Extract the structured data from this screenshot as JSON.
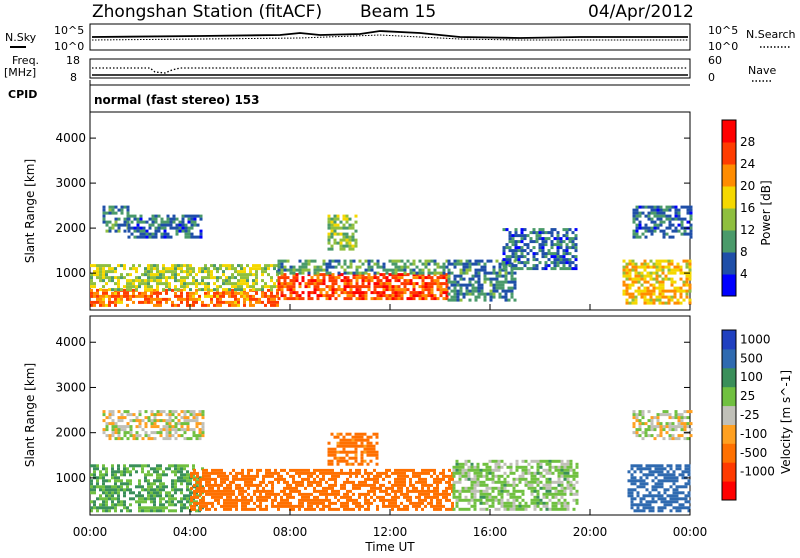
{
  "header": {
    "station": "Zhongshan Station (fitACF)",
    "beam": "Beam 15",
    "date": "04/Apr/2012"
  },
  "top_panels": {
    "nsky_label": "N.Sky",
    "nsearch_label": "N.Search",
    "nsky_ticks": [
      "10^5",
      "10^0"
    ],
    "nsearch_ticks": [
      "10^5",
      "10^0"
    ],
    "freq_label": "Freq.",
    "freq_unit": "[MHz]",
    "freq_ticks": [
      "18",
      "8"
    ],
    "nave_label": "Nave",
    "nave_ticks": [
      "60",
      "0"
    ],
    "cpid_label": "CPID",
    "cpid_text": "normal (fast stereo) 153"
  },
  "colors": {
    "power_scale": [
      "#0000ff",
      "#1f4fa8",
      "#4a9a6a",
      "#8fbf3f",
      "#f5d800",
      "#ff8c00",
      "#ff3c00",
      "#ff0000"
    ],
    "velocity_scale": [
      "#2040c0",
      "#2f6ab0",
      "#3a8f5a",
      "#70c040",
      "#c0c0b8",
      "#ffa020",
      "#ff7000",
      "#ff3a00",
      "#ff0000"
    ]
  },
  "chart_data": [
    {
      "type": "heatmap",
      "ylabel": "Slant Range [km]",
      "xlabel": "Time UT",
      "x_ticks": [
        "00:00",
        "04:00",
        "08:00",
        "12:00",
        "16:00",
        "20:00",
        "00:00"
      ],
      "xlim_hours": [
        0,
        24
      ],
      "ylim_km": [
        180,
        4580
      ],
      "y_ticks": [
        1000,
        2000,
        3000,
        4000
      ],
      "colorbar_label": "Power [dB]",
      "colorbar_ticks": [
        "4",
        "8",
        "12",
        "16",
        "20",
        "24",
        "28"
      ],
      "colorbar_range": [
        0,
        30
      ],
      "regions": [
        {
          "t0": 0.0,
          "t1": 7.5,
          "r0": 300,
          "r1": 650,
          "level": 22
        },
        {
          "t0": 0.0,
          "t1": 7.5,
          "r0": 650,
          "r1": 1200,
          "level": 14
        },
        {
          "t0": 0.5,
          "t1": 1.5,
          "r0": 1900,
          "r1": 2500,
          "level": 8
        },
        {
          "t0": 1.5,
          "t1": 4.5,
          "r0": 1800,
          "r1": 2300,
          "level": 7
        },
        {
          "t0": 7.5,
          "t1": 14.3,
          "r0": 400,
          "r1": 1000,
          "level": 24
        },
        {
          "t0": 7.5,
          "t1": 14.3,
          "r0": 1000,
          "r1": 1300,
          "level": 10
        },
        {
          "t0": 9.5,
          "t1": 10.7,
          "r0": 1500,
          "r1": 2300,
          "level": 13
        },
        {
          "t0": 14.3,
          "t1": 17.0,
          "r0": 400,
          "r1": 1300,
          "level": 8
        },
        {
          "t0": 16.5,
          "t1": 19.5,
          "r0": 1100,
          "r1": 2000,
          "level": 7
        },
        {
          "t0": 21.3,
          "t1": 24.0,
          "r0": 300,
          "r1": 1300,
          "level": 18
        },
        {
          "t0": 21.7,
          "t1": 24.0,
          "r0": 1800,
          "r1": 2500,
          "level": 7
        }
      ]
    },
    {
      "type": "heatmap",
      "ylabel": "Slant Range [km]",
      "xlabel": "Time UT",
      "x_ticks": [
        "00:00",
        "04:00",
        "08:00",
        "12:00",
        "16:00",
        "20:00",
        "00:00"
      ],
      "xlim_hours": [
        0,
        24
      ],
      "ylim_km": [
        180,
        4580
      ],
      "y_ticks": [
        1000,
        2000,
        3000,
        4000
      ],
      "colorbar_label": "Velocity [m s^-1]",
      "colorbar_ticks": [
        "1000",
        "500",
        "100",
        "25",
        "-25",
        "-100",
        "-500",
        "-1000"
      ],
      "regions": [
        {
          "t0": 0.0,
          "t1": 4.5,
          "r0": 300,
          "r1": 1300,
          "level": 100
        },
        {
          "t0": 0.5,
          "t1": 4.5,
          "r0": 1900,
          "r1": 2500,
          "level": 0
        },
        {
          "t0": 4.0,
          "t1": 14.5,
          "r0": 300,
          "r1": 1200,
          "level": -300
        },
        {
          "t0": 9.5,
          "t1": 11.5,
          "r0": 1300,
          "r1": 2000,
          "level": -150
        },
        {
          "t0": 14.5,
          "t1": 19.5,
          "r0": 300,
          "r1": 1400,
          "level": 50
        },
        {
          "t0": 21.5,
          "t1": 24.0,
          "r0": 300,
          "r1": 1300,
          "level": 600
        },
        {
          "t0": 21.7,
          "t1": 24.0,
          "r0": 1900,
          "r1": 2500,
          "level": 0
        }
      ]
    }
  ]
}
